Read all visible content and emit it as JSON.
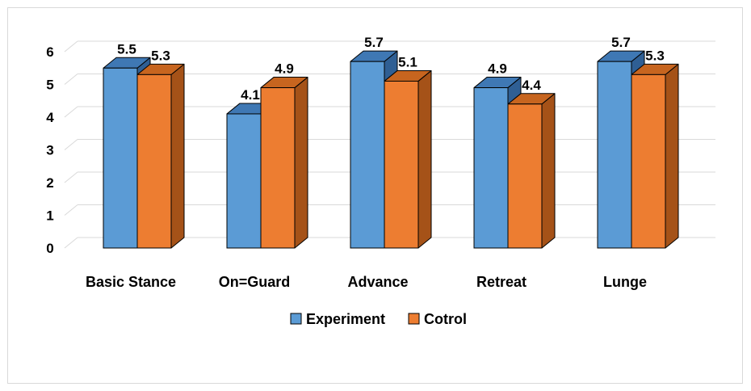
{
  "chart_data": {
    "type": "bar",
    "style": "3d-clustered-column",
    "title": "",
    "xlabel": "",
    "ylabel": "",
    "ylim": [
      0,
      6
    ],
    "yticks": [
      0,
      1,
      2,
      3,
      4,
      5,
      6
    ],
    "grid": true,
    "legend_position": "bottom",
    "categories": [
      "Basic Stance",
      "On=Guard",
      "Advance",
      "Retreat",
      "Lunge"
    ],
    "series": [
      {
        "name": "Experiment",
        "values": [
          5.5,
          4.1,
          5.7,
          4.9,
          5.7
        ],
        "labels": [
          "5.5",
          "4.1",
          "5.7",
          "4.9",
          "5.7"
        ],
        "color": "#5b9bd5",
        "top_color": "#3f78b4",
        "side_color": "#2f5f94"
      },
      {
        "name": "Cotrol",
        "values": [
          5.3,
          4.9,
          5.1,
          4.4,
          5.3
        ],
        "labels": [
          "5.3",
          "4.9",
          "5.1",
          "4.4",
          "5.3"
        ],
        "color": "#ed7d31",
        "top_color": "#c7651f",
        "side_color": "#a55218"
      }
    ]
  }
}
